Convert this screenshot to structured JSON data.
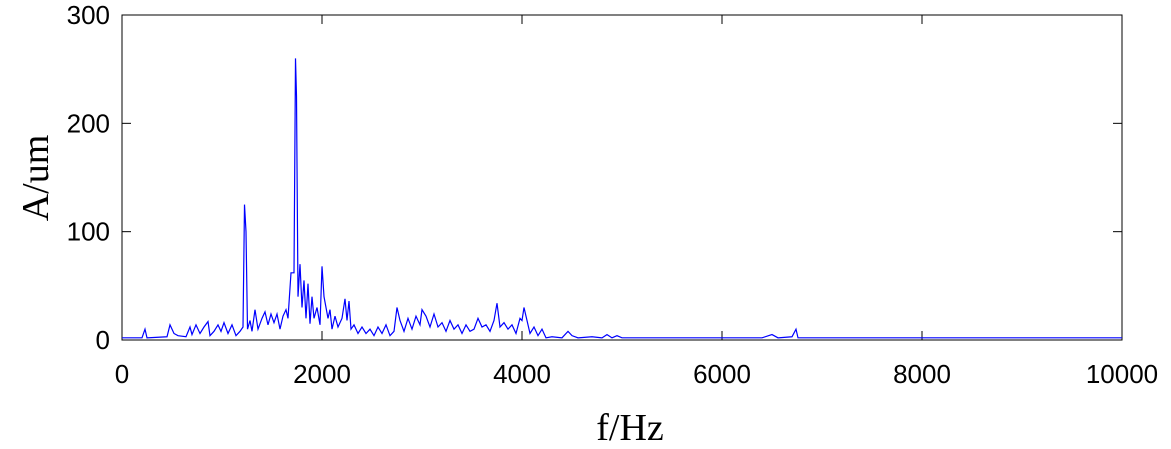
{
  "chart_data": {
    "type": "line",
    "x_label": "f/Hz",
    "y_label": "A/um",
    "xlim": [
      0,
      10000
    ],
    "xticks": [
      0,
      2000,
      4000,
      6000,
      8000,
      10000
    ],
    "ylim": [
      0,
      300
    ],
    "yticks": [
      0,
      100,
      200,
      300
    ],
    "series": [
      {
        "color": "#0000ff",
        "x": [
          0,
          200,
          230,
          250,
          450,
          480,
          520,
          560,
          640,
          680,
          700,
          740,
          780,
          820,
          860,
          880,
          920,
          960,
          990,
          1020,
          1060,
          1100,
          1140,
          1180,
          1210,
          1225,
          1240,
          1255,
          1280,
          1300,
          1330,
          1360,
          1400,
          1430,
          1460,
          1490,
          1520,
          1550,
          1580,
          1610,
          1640,
          1660,
          1690,
          1720,
          1735,
          1745,
          1760,
          1780,
          1800,
          1820,
          1840,
          1860,
          1880,
          1900,
          1920,
          1950,
          1980,
          2000,
          2020,
          2040,
          2060,
          2080,
          2100,
          2130,
          2160,
          2200,
          2230,
          2250,
          2270,
          2290,
          2320,
          2360,
          2400,
          2440,
          2480,
          2520,
          2560,
          2600,
          2640,
          2680,
          2720,
          2750,
          2780,
          2820,
          2860,
          2900,
          2940,
          2980,
          3000,
          3040,
          3080,
          3120,
          3160,
          3200,
          3240,
          3280,
          3320,
          3360,
          3400,
          3440,
          3480,
          3520,
          3560,
          3600,
          3640,
          3680,
          3720,
          3750,
          3780,
          3820,
          3860,
          3900,
          3940,
          3980,
          4000,
          4020,
          4050,
          4080,
          4120,
          4160,
          4200,
          4240,
          4300,
          4400,
          4460,
          4500,
          4560,
          4700,
          4800,
          4850,
          4900,
          4950,
          5000,
          6400,
          6500,
          6560,
          6700,
          6740,
          6760,
          10000
        ],
        "values": [
          2,
          2,
          10,
          2,
          3,
          14,
          6,
          4,
          3,
          12,
          5,
          14,
          6,
          12,
          17,
          4,
          8,
          14,
          8,
          16,
          6,
          14,
          4,
          8,
          12,
          125,
          100,
          10,
          18,
          8,
          28,
          10,
          20,
          26,
          14,
          24,
          16,
          24,
          10,
          22,
          28,
          20,
          62,
          62,
          260,
          225,
          40,
          70,
          30,
          55,
          20,
          52,
          15,
          40,
          20,
          30,
          14,
          68,
          40,
          30,
          20,
          28,
          10,
          22,
          12,
          20,
          38,
          18,
          36,
          10,
          14,
          6,
          12,
          6,
          10,
          4,
          12,
          6,
          14,
          4,
          8,
          30,
          18,
          8,
          20,
          10,
          22,
          14,
          28,
          22,
          12,
          24,
          12,
          16,
          8,
          18,
          10,
          14,
          6,
          14,
          8,
          10,
          20,
          12,
          14,
          8,
          18,
          34,
          12,
          16,
          10,
          14,
          6,
          20,
          18,
          30,
          18,
          6,
          12,
          4,
          10,
          2,
          3,
          2,
          8,
          4,
          2,
          3,
          2,
          5,
          2,
          4,
          2,
          2,
          5,
          2,
          3,
          10,
          2,
          2
        ]
      }
    ]
  }
}
